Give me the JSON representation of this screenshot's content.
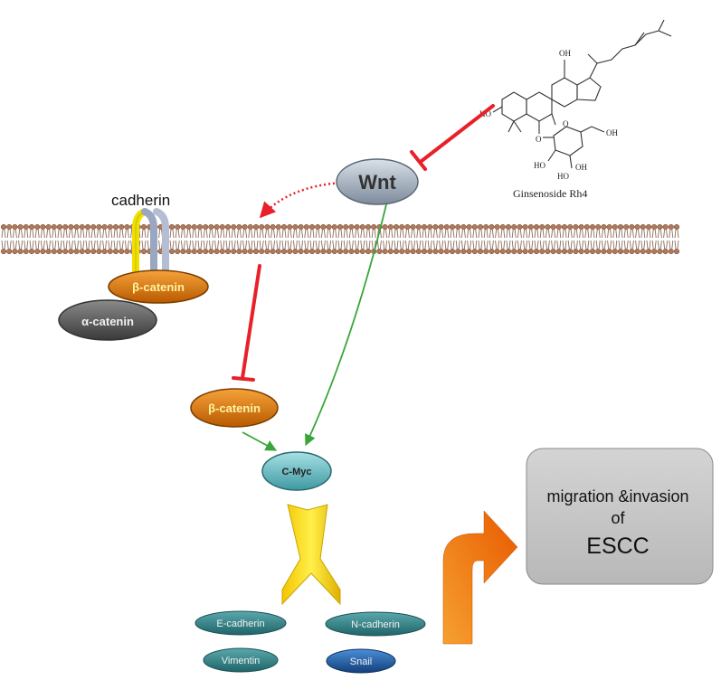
{
  "compound": {
    "name": "Ginsenoside Rh4",
    "atoms": {
      "oh_top": "OH",
      "ho_left": "HO",
      "o_link": "O",
      "o_ring": "O",
      "oh_sugar": "OH",
      "ho_sugar1": "HO",
      "ho_sugar2": "HO",
      "oh_sugar2": "OH"
    }
  },
  "nodes": {
    "wnt": "Wnt",
    "cadherin": "cadherin",
    "beta_catenin_membrane": "β-catenin",
    "alpha_catenin": "α-catenin",
    "beta_catenin_cyto": "β-catenin",
    "cmyc": "C-Myc",
    "e_cadherin": "E-cadherin",
    "n_cadherin": "N-cadherin",
    "vimentin": "Vimentin",
    "snail": "Snail"
  },
  "outcome": {
    "line1": "migration &invasion",
    "line2": "of",
    "line3": "ESCC"
  },
  "colors": {
    "inhibit": "#e8202a",
    "activate": "#3aa63a",
    "wnt_fill": "#9aa7b6",
    "beta_fill": "#e07a10",
    "alpha_fill": "#555555",
    "cmyc_fill": "#5bb8bf",
    "marker_fill": "#2e7f83",
    "snail_fill": "#1f5fa8",
    "yellow_arrow": "#f5d800",
    "orange_arrow": "#f07a10",
    "outcome_box": "#c8c8c8"
  }
}
